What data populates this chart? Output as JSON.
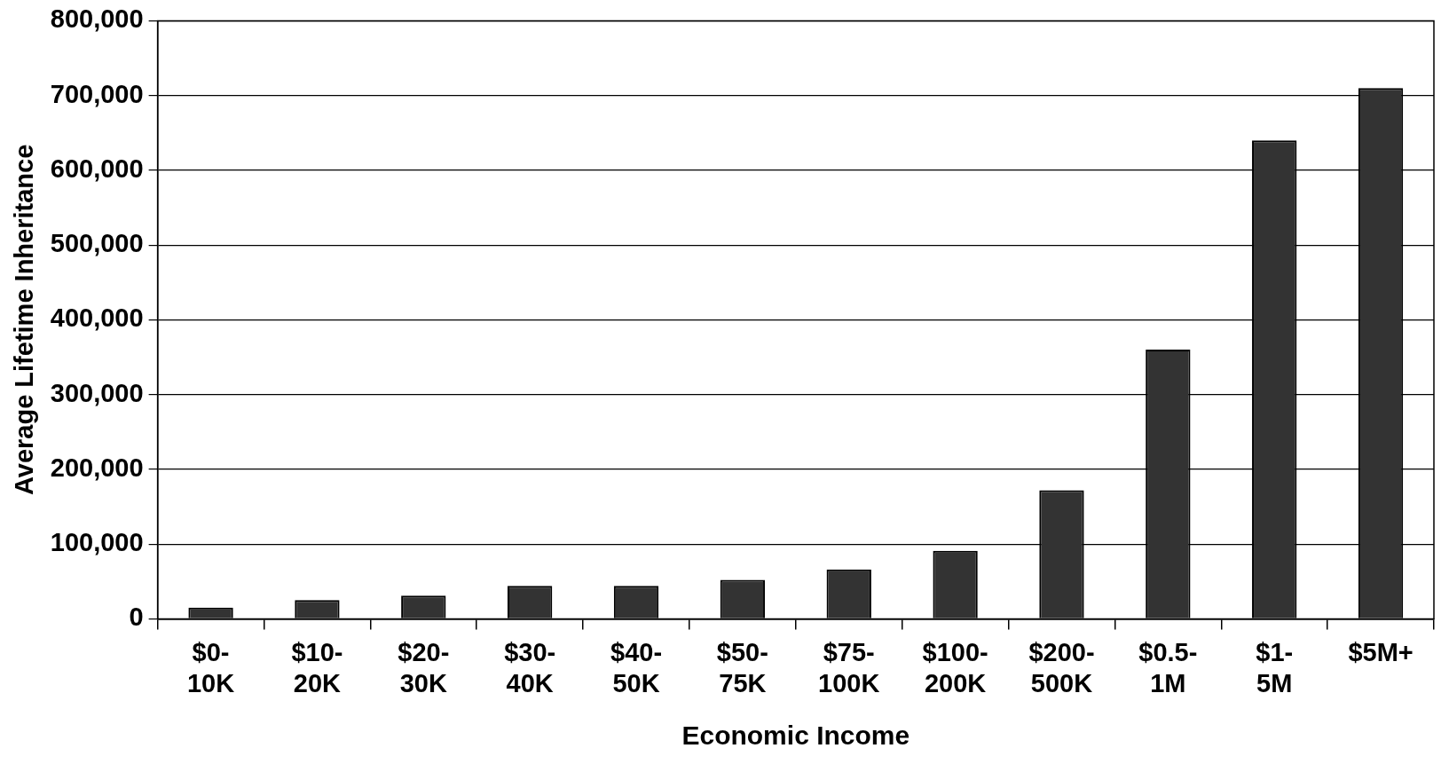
{
  "chart_data": {
    "type": "bar",
    "xlabel": "Economic Income",
    "ylabel": "Average Lifetime Inheritance",
    "categories": [
      "$0-10K",
      "$10-20K",
      "$20-30K",
      "$30-40K",
      "$40-50K",
      "$50-75K",
      "$75-100K",
      "$100-200K",
      "$200-500K",
      "$0.5-1M",
      "$1-5M",
      "$5M+"
    ],
    "values": [
      15000,
      25000,
      31000,
      44000,
      44000,
      52000,
      66000,
      91000,
      172000,
      360000,
      640000,
      710000
    ],
    "color": "#333333",
    "ylim": [
      0,
      800000
    ],
    "yticks": [
      0,
      {
        "value": 100000,
        "label": "100,000"
      },
      {
        "value": 200000,
        "label": "200,000"
      },
      {
        "value": 300000,
        "label": "300,000"
      },
      {
        "value": 400000,
        "label": "400,000"
      },
      {
        "value": 500000,
        "label": "500,000"
      },
      {
        "value": 600000,
        "label": "600,000"
      },
      {
        "value": 700000,
        "label": "700,000"
      },
      {
        "value": 800000,
        "label": "800,000"
      }
    ],
    "grid": "y",
    "legend": false
  }
}
